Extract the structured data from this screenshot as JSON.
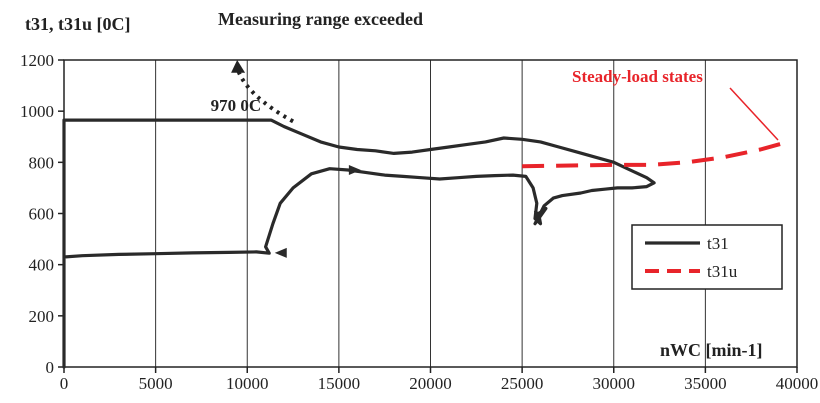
{
  "chart_data": {
    "type": "line",
    "ylabel": "t31, t31u [0C]",
    "xlabel": "nWC [min-1]",
    "xlim": [
      0,
      40000
    ],
    "ylim": [
      0,
      1200
    ],
    "x_ticks": [
      "0",
      "5000",
      "10000",
      "15000",
      "20000",
      "25000",
      "30000",
      "35000",
      "40000"
    ],
    "y_ticks": [
      "0",
      "200",
      "400",
      "600",
      "800",
      "1000",
      "1200"
    ],
    "grid": "vertical",
    "legend_placement": "lower-right",
    "annotations": {
      "measuring": "Measuring range exceeded",
      "limit": "970 0C",
      "steady": "Steady-load states"
    },
    "series": [
      {
        "name": "t31",
        "color": "#2a2a2a",
        "style": "solid",
        "x": [
          0,
          0,
          1000,
          3000,
          5000,
          7000,
          9000,
          10500,
          11200,
          11000,
          11400,
          11800,
          12500,
          13500,
          14500,
          15500,
          16500,
          17500,
          18500,
          19500,
          20500,
          21500,
          22500,
          23500,
          24500,
          25200,
          25600,
          25800,
          25700,
          26000,
          25900,
          26300,
          25700,
          26200,
          26700,
          27200,
          28200,
          28800,
          29500,
          30200,
          31000,
          31800,
          32200,
          31800,
          31200,
          30600,
          30000,
          29000,
          28000,
          27000,
          26000,
          25000,
          24000,
          23000,
          22000,
          21000,
          20000,
          19000,
          18000,
          17000,
          16000,
          15000,
          14000,
          13000,
          12000,
          11300,
          11300,
          10000,
          8000,
          6000,
          4000,
          2000,
          0,
          0
        ],
        "y": [
          0,
          430,
          435,
          440,
          443,
          446,
          448,
          450,
          445,
          470,
          560,
          640,
          700,
          755,
          775,
          770,
          760,
          750,
          745,
          740,
          735,
          740,
          745,
          748,
          750,
          745,
          700,
          640,
          580,
          560,
          600,
          620,
          560,
          630,
          660,
          670,
          680,
          690,
          695,
          700,
          700,
          705,
          720,
          740,
          760,
          780,
          800,
          820,
          840,
          860,
          880,
          890,
          895,
          880,
          870,
          860,
          850,
          840,
          835,
          845,
          850,
          860,
          880,
          910,
          940,
          965,
          965,
          965,
          965,
          965,
          965,
          965,
          965,
          430
        ]
      },
      {
        "name": "t31u",
        "color": "#e8242a",
        "style": "dashed",
        "x": [
          25000,
          30000,
          32000,
          34000,
          36000,
          38000,
          39500
        ],
        "y": [
          785,
          790,
          790,
          800,
          820,
          850,
          880
        ]
      }
    ]
  }
}
